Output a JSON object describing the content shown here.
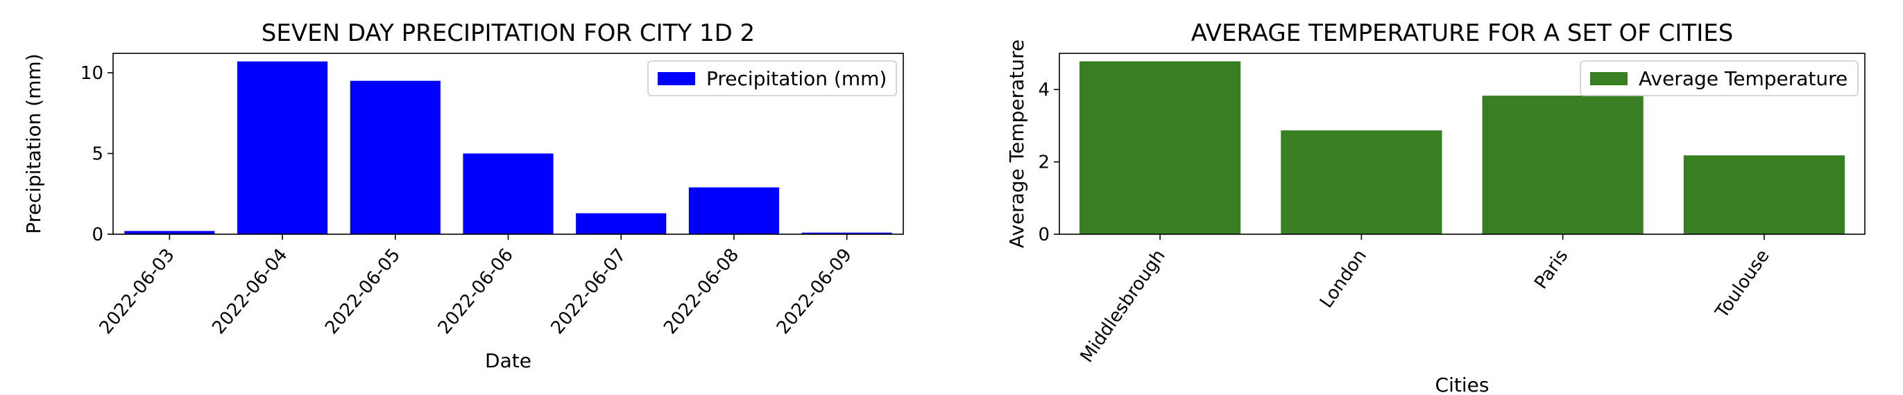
{
  "chart_data": [
    {
      "type": "bar",
      "title": "SEVEN DAY PRECIPITATION FOR CITY 1D 2",
      "xlabel": "Date",
      "ylabel": "Precipitation (mm)",
      "categories": [
        "2022-06-03",
        "2022-06-04",
        "2022-06-05",
        "2022-06-06",
        "2022-06-07",
        "2022-06-08",
        "2022-06-09"
      ],
      "series": [
        {
          "name": "Precipitation (mm)",
          "values": [
            0.2,
            10.7,
            9.5,
            5.0,
            1.3,
            2.9,
            0.1
          ],
          "color": "#0000ff"
        }
      ],
      "ylim": [
        0,
        11.2
      ],
      "yticks": [
        0,
        5,
        10
      ],
      "xtick_rotation": -50,
      "legend": "top-right",
      "grid": false
    },
    {
      "type": "bar",
      "title": "AVERAGE TEMPERATURE FOR A SET OF CITIES",
      "xlabel": "Cities",
      "ylabel": "Average Temperature",
      "categories": [
        "Middlesbrough",
        "London",
        "Paris",
        "Toulouse"
      ],
      "series": [
        {
          "name": "Average Temperature",
          "values": [
            4.78,
            2.87,
            3.83,
            2.18
          ],
          "color": "#387f22"
        }
      ],
      "ylim": [
        0,
        5.0
      ],
      "yticks": [
        0,
        2,
        4
      ],
      "xtick_rotation": -55,
      "legend": "top-right",
      "grid": false
    }
  ]
}
